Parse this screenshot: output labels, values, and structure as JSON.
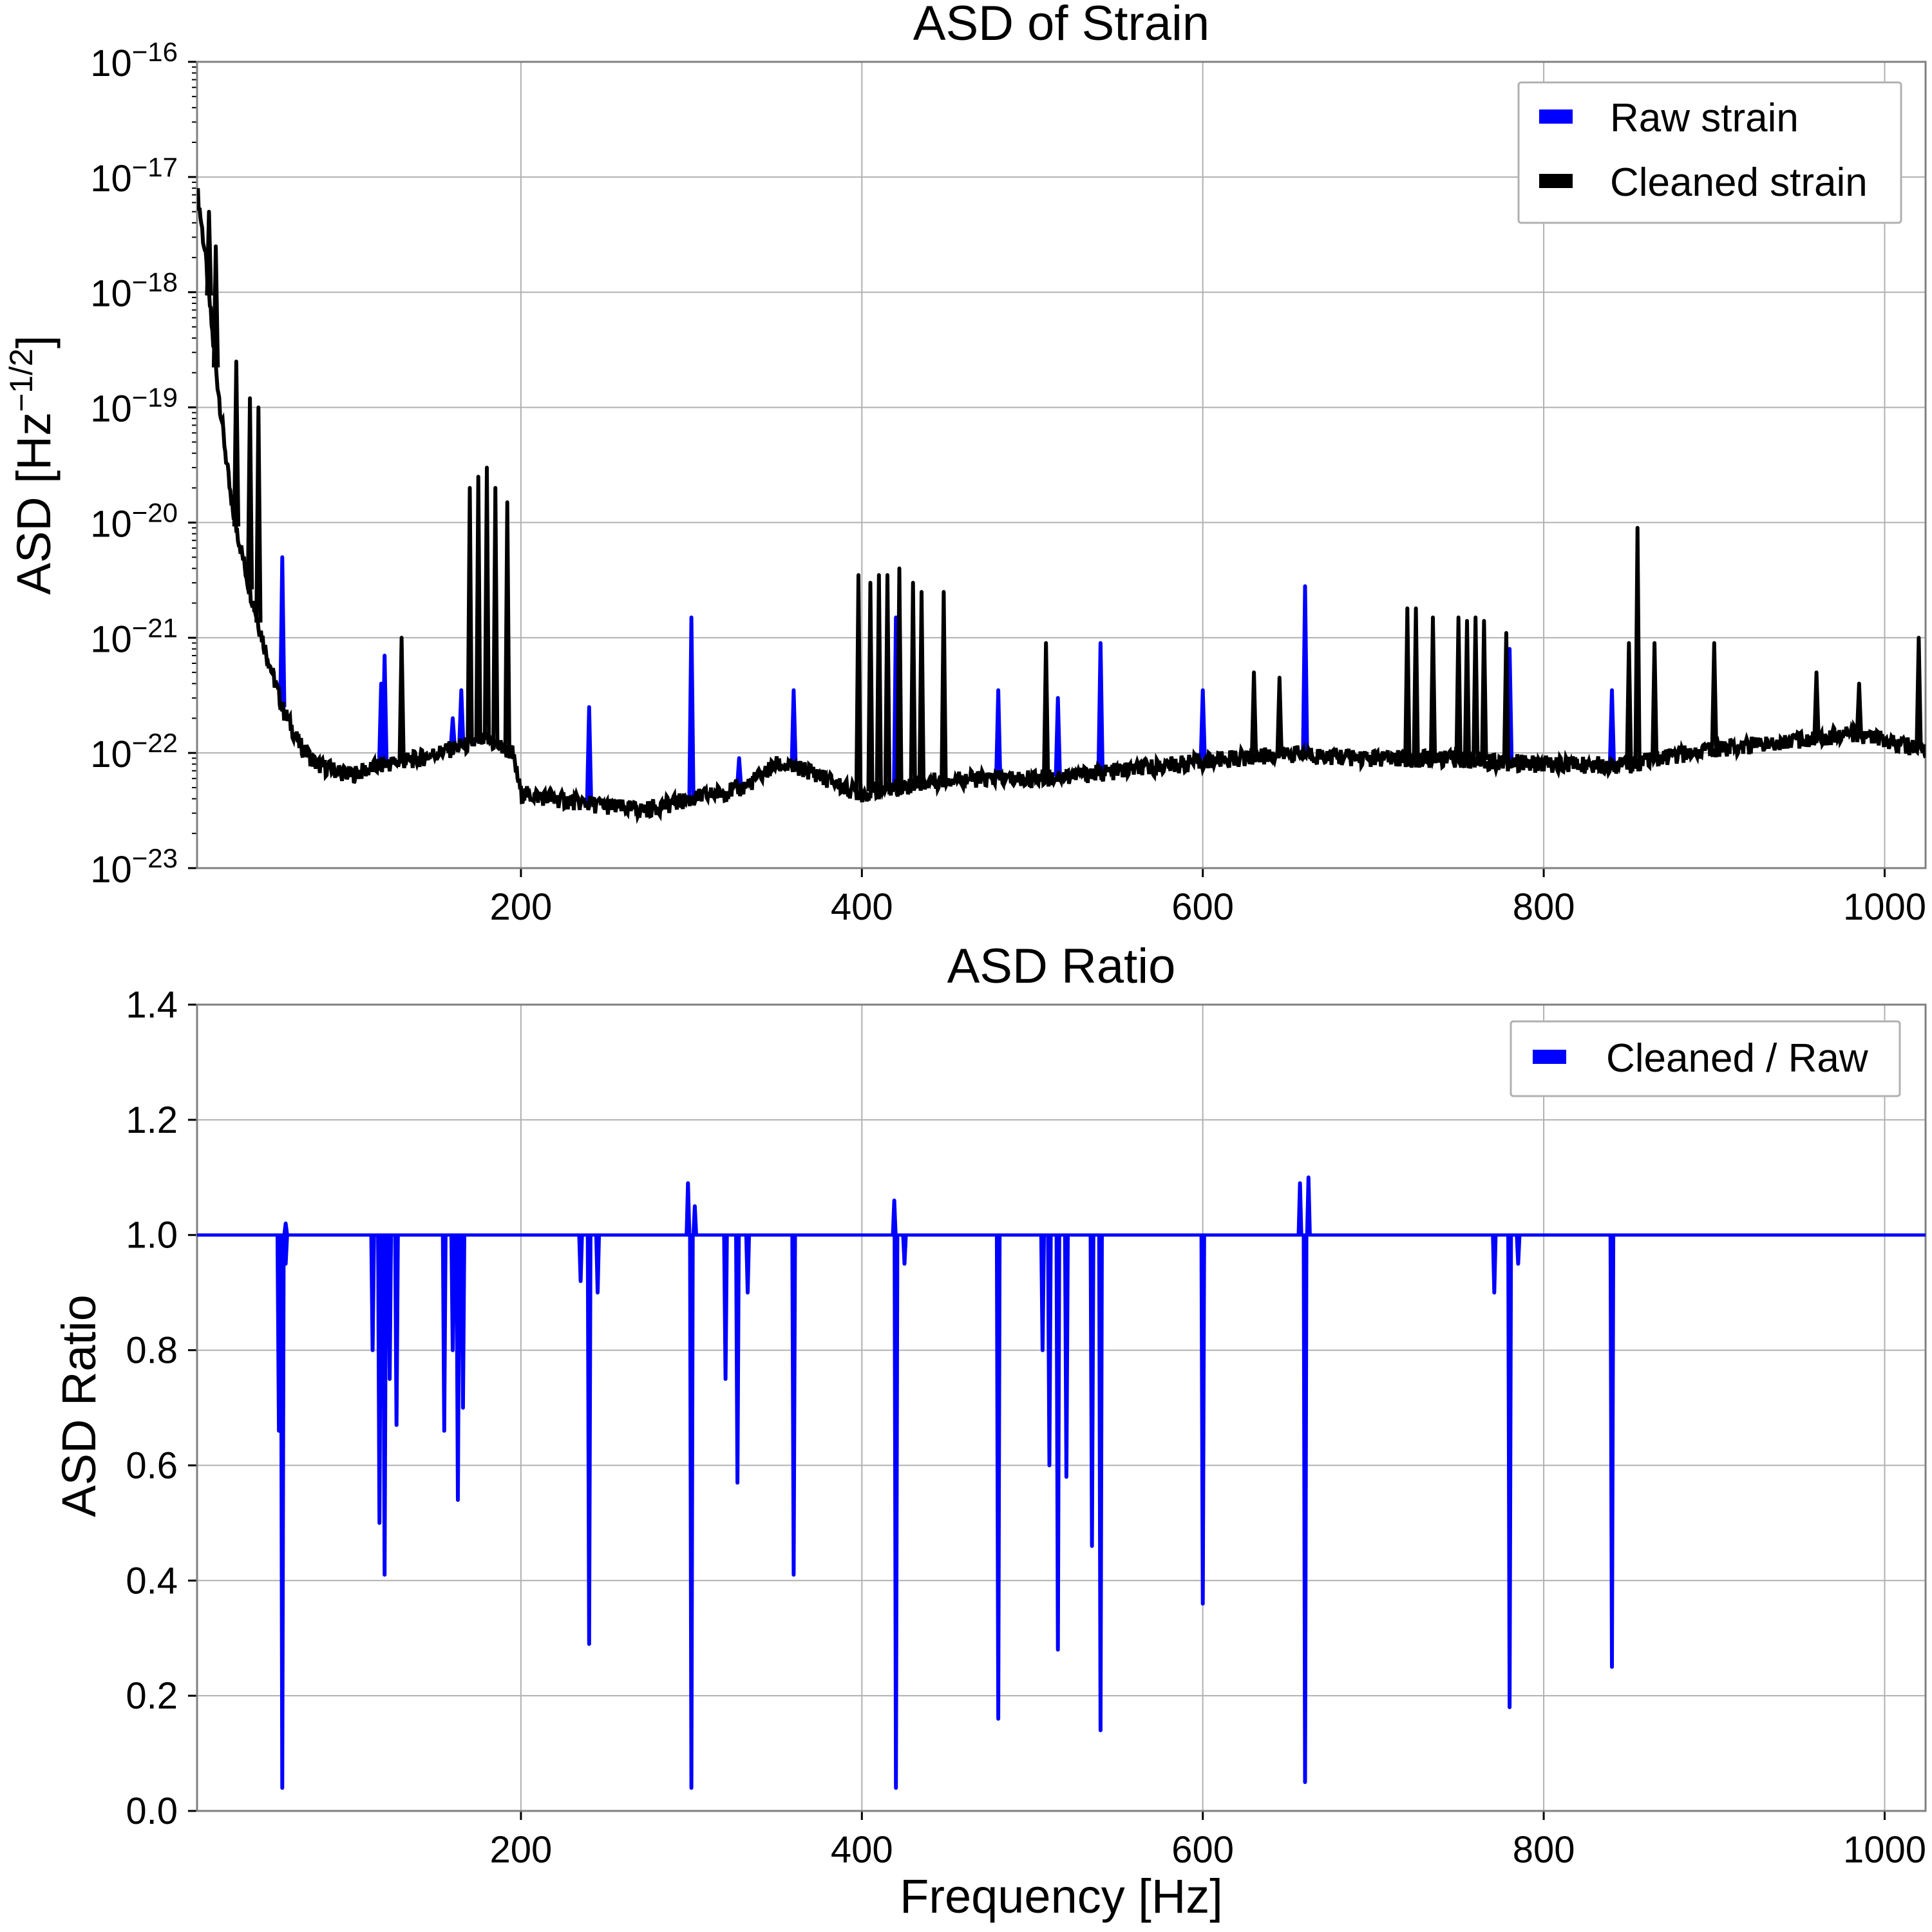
{
  "colors": {
    "raw": "#0000ff",
    "cleaned": "#000000",
    "ratio": "#0000ff",
    "grid": "#b0b0b0"
  },
  "chart_data": [
    {
      "type": "line",
      "title": "ASD of Strain",
      "xlabel": "",
      "ylabel": "ASD [Hz",
      "ylabel_sup": "−1/2",
      "ylabel_end": "]",
      "xscale": "linear",
      "yscale": "log",
      "xlim": [
        10,
        1024
      ],
      "ylim": [
        1e-23,
        1e-16
      ],
      "grid": true,
      "legend_position": "top-right",
      "xticks": [
        200,
        400,
        600,
        800,
        1000
      ],
      "xtick_labels": [
        "200",
        "400",
        "600",
        "800",
        "1000"
      ],
      "yticks": [
        {
          "base": "10",
          "exp": "−16",
          "value": 1e-16
        },
        {
          "base": "10",
          "exp": "−17",
          "value": 1e-17
        },
        {
          "base": "10",
          "exp": "−18",
          "value": 1e-18
        },
        {
          "base": "10",
          "exp": "−19",
          "value": 1e-19
        },
        {
          "base": "10",
          "exp": "−20",
          "value": 1e-20
        },
        {
          "base": "10",
          "exp": "−21",
          "value": 1e-21
        },
        {
          "base": "10",
          "exp": "−22",
          "value": 1e-22
        },
        {
          "base": "10",
          "exp": "−23",
          "value": 1e-23
        }
      ],
      "baseline": {
        "x": [
          10,
          15,
          20,
          30,
          40,
          50,
          60,
          70,
          80,
          100,
          120,
          140,
          160,
          180,
          195,
          200,
          220,
          250,
          270,
          300,
          330,
          350,
          370,
          390,
          400,
          450,
          500,
          550,
          600,
          650,
          700,
          750,
          800,
          850,
          900,
          950,
          980,
          1000,
          1020
        ],
        "y": [
          8e-18,
          2e-18,
          3e-19,
          1.5e-20,
          3e-21,
          8e-22,
          2.5e-22,
          1.2e-22,
          8e-23,
          6.5e-23,
          8e-23,
          9e-23,
          1.1e-22,
          1.3e-22,
          1e-22,
          4.5e-23,
          4e-23,
          3.5e-23,
          3.2e-23,
          4e-23,
          5e-23,
          8e-23,
          7e-23,
          5e-23,
          4.5e-23,
          6e-23,
          6e-23,
          7e-23,
          8.5e-23,
          1e-22,
          9e-23,
          9e-23,
          8e-23,
          8e-23,
          1.1e-22,
          1.3e-22,
          1.5e-22,
          1.3e-22,
          1.1e-22
        ]
      },
      "series": [
        {
          "name": "Raw strain",
          "peaks": [
            {
              "x": 60,
              "y": 5e-21
            },
            {
              "x": 118,
              "y": 4e-22
            },
            {
              "x": 120,
              "y": 7e-22
            },
            {
              "x": 160,
              "y": 2e-22
            },
            {
              "x": 165,
              "y": 3.5e-22
            },
            {
              "x": 240,
              "y": 2.5e-22
            },
            {
              "x": 300,
              "y": 1.5e-21
            },
            {
              "x": 328,
              "y": 9e-23
            },
            {
              "x": 360,
              "y": 3.5e-22
            },
            {
              "x": 420,
              "y": 1.5e-21
            },
            {
              "x": 480,
              "y": 3.5e-22
            },
            {
              "x": 515,
              "y": 3e-22
            },
            {
              "x": 540,
              "y": 9e-22
            },
            {
              "x": 600,
              "y": 3.5e-22
            },
            {
              "x": 660,
              "y": 2.8e-21
            },
            {
              "x": 780,
              "y": 8e-22
            },
            {
              "x": 840,
              "y": 3.5e-22
            }
          ]
        },
        {
          "name": "Cleaned strain",
          "peaks": [
            {
              "x": 17,
              "y": 5e-18
            },
            {
              "x": 21,
              "y": 2.5e-18
            },
            {
              "x": 33,
              "y": 2.5e-19
            },
            {
              "x": 41,
              "y": 1.2e-19
            },
            {
              "x": 46,
              "y": 1e-19
            },
            {
              "x": 130,
              "y": 1e-21
            },
            {
              "x": 170,
              "y": 2e-20
            },
            {
              "x": 175,
              "y": 2.5e-20
            },
            {
              "x": 180,
              "y": 3e-20
            },
            {
              "x": 185,
              "y": 2e-20
            },
            {
              "x": 192,
              "y": 1.5e-20
            },
            {
              "x": 398,
              "y": 3.5e-21
            },
            {
              "x": 405,
              "y": 3e-21
            },
            {
              "x": 410,
              "y": 3.5e-21
            },
            {
              "x": 415,
              "y": 3.5e-21
            },
            {
              "x": 422,
              "y": 4e-21
            },
            {
              "x": 430,
              "y": 3e-21
            },
            {
              "x": 435,
              "y": 2.5e-21
            },
            {
              "x": 448,
              "y": 2.5e-21
            },
            {
              "x": 508,
              "y": 9e-22
            },
            {
              "x": 630,
              "y": 5e-22
            },
            {
              "x": 645,
              "y": 4.5e-22
            },
            {
              "x": 720,
              "y": 1.8e-21
            },
            {
              "x": 725,
              "y": 1.8e-21
            },
            {
              "x": 735,
              "y": 1.5e-21
            },
            {
              "x": 750,
              "y": 1.5e-21
            },
            {
              "x": 755,
              "y": 1.4e-21
            },
            {
              "x": 760,
              "y": 1.5e-21
            },
            {
              "x": 765,
              "y": 1.4e-21
            },
            {
              "x": 778,
              "y": 1.1e-21
            },
            {
              "x": 850,
              "y": 9e-22
            },
            {
              "x": 855,
              "y": 9e-21
            },
            {
              "x": 865,
              "y": 9e-22
            },
            {
              "x": 900,
              "y": 9e-22
            },
            {
              "x": 960,
              "y": 5e-22
            },
            {
              "x": 985,
              "y": 4e-22
            },
            {
              "x": 1020,
              "y": 1e-21
            }
          ]
        }
      ]
    },
    {
      "type": "line",
      "title": "ASD Ratio",
      "xlabel": "Frequency [Hz]",
      "ylabel": "ASD Ratio",
      "xscale": "linear",
      "yscale": "linear",
      "xlim": [
        10,
        1024
      ],
      "ylim": [
        0.0,
        1.4
      ],
      "grid": true,
      "legend_position": "top-right",
      "xticks": [
        200,
        400,
        600,
        800,
        1000
      ],
      "xtick_labels": [
        "200",
        "400",
        "600",
        "800",
        "1000"
      ],
      "yticks": [
        0.0,
        0.2,
        0.4,
        0.6,
        0.8,
        1.0,
        1.2,
        1.4
      ],
      "ytick_labels": [
        "0.0",
        "0.2",
        "0.4",
        "0.6",
        "0.8",
        "1.0",
        "1.2",
        "1.4"
      ],
      "series": [
        {
          "name": "Cleaned / Raw",
          "baseline": 1.0,
          "dips": [
            {
              "x": 60,
              "y": 0.04
            },
            {
              "x": 58,
              "y": 0.66
            },
            {
              "x": 62,
              "y": 0.95
            },
            {
              "x": 113,
              "y": 0.8
            },
            {
              "x": 117,
              "y": 0.5
            },
            {
              "x": 120,
              "y": 0.41
            },
            {
              "x": 123,
              "y": 0.75
            },
            {
              "x": 127,
              "y": 0.67
            },
            {
              "x": 155,
              "y": 0.66
            },
            {
              "x": 160,
              "y": 0.8
            },
            {
              "x": 163,
              "y": 0.54
            },
            {
              "x": 166,
              "y": 0.7
            },
            {
              "x": 235,
              "y": 0.92
            },
            {
              "x": 240,
              "y": 0.29
            },
            {
              "x": 245,
              "y": 0.9
            },
            {
              "x": 300,
              "y": 0.04
            },
            {
              "x": 320,
              "y": 0.75
            },
            {
              "x": 327,
              "y": 0.57
            },
            {
              "x": 333,
              "y": 0.9
            },
            {
              "x": 360,
              "y": 0.41
            },
            {
              "x": 420,
              "y": 0.04
            },
            {
              "x": 425,
              "y": 0.95
            },
            {
              "x": 480,
              "y": 0.16
            },
            {
              "x": 506,
              "y": 0.8
            },
            {
              "x": 510,
              "y": 0.6
            },
            {
              "x": 515,
              "y": 0.28
            },
            {
              "x": 520,
              "y": 0.58
            },
            {
              "x": 535,
              "y": 0.46
            },
            {
              "x": 540,
              "y": 0.14
            },
            {
              "x": 600,
              "y": 0.36
            },
            {
              "x": 660,
              "y": 0.05
            },
            {
              "x": 771,
              "y": 0.9
            },
            {
              "x": 780,
              "y": 0.18
            },
            {
              "x": 785,
              "y": 0.95
            },
            {
              "x": 840,
              "y": 0.25
            }
          ],
          "bumps": [
            {
              "x": 298,
              "y": 1.09
            },
            {
              "x": 302,
              "y": 1.05
            },
            {
              "x": 419,
              "y": 1.06
            },
            {
              "x": 657,
              "y": 1.09
            },
            {
              "x": 662,
              "y": 1.1
            },
            {
              "x": 62,
              "y": 1.02
            }
          ]
        }
      ]
    }
  ]
}
